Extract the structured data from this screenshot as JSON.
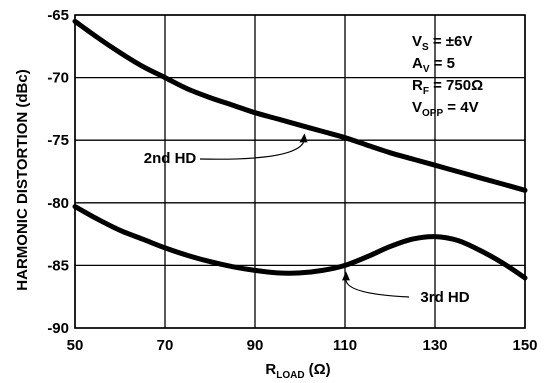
{
  "chart_data": {
    "type": "line",
    "title": "",
    "xlabel": {
      "main": "R",
      "sub": "LOAD",
      "unit": "(Ω)"
    },
    "ylabel": "HARMONIC DISTORTION (dBc)",
    "xlim": [
      50,
      150
    ],
    "ylim": [
      -90,
      -65
    ],
    "xticks": [
      "50",
      "70",
      "90",
      "110",
      "130",
      "150"
    ],
    "yticks": [
      "-65",
      "-70",
      "-75",
      "-80",
      "-85",
      "-90"
    ],
    "grid": true,
    "series": [
      {
        "name": "2nd HD",
        "x": [
          50,
          55,
          60,
          65,
          70,
          75,
          80,
          85,
          90,
          95,
          100,
          105,
          110,
          115,
          120,
          125,
          130,
          135,
          140,
          145,
          150
        ],
        "y": [
          -65.5,
          -66.8,
          -68.0,
          -69.1,
          -70.0,
          -70.9,
          -71.6,
          -72.2,
          -72.8,
          -73.3,
          -73.8,
          -74.3,
          -74.8,
          -75.4,
          -76.0,
          -76.5,
          -77.0,
          -77.5,
          -78.0,
          -78.5,
          -79.0
        ]
      },
      {
        "name": "3rd HD",
        "x": [
          50,
          55,
          60,
          65,
          70,
          75,
          80,
          85,
          90,
          95,
          100,
          105,
          110,
          115,
          120,
          125,
          130,
          135,
          140,
          145,
          150
        ],
        "y": [
          -80.3,
          -81.3,
          -82.2,
          -82.9,
          -83.6,
          -84.2,
          -84.7,
          -85.1,
          -85.4,
          -85.6,
          -85.6,
          -85.4,
          -85.0,
          -84.3,
          -83.5,
          -82.9,
          -82.7,
          -83.0,
          -83.8,
          -84.8,
          -86.0
        ]
      }
    ],
    "annotations": [
      {
        "text": "2nd HD",
        "x_at": 101,
        "y_at": -73.9
      },
      {
        "text": "3rd HD",
        "x_at": 110,
        "y_at": -85.0
      }
    ],
    "conditions": [
      {
        "main": "V",
        "sub": "S",
        "rest": " = ±6V"
      },
      {
        "main": "A",
        "sub": "V",
        "rest": " = 5"
      },
      {
        "main": "R",
        "sub": "F",
        "rest": " = 750Ω"
      },
      {
        "main": "V",
        "sub": "OPP",
        "rest": " = 4V"
      }
    ]
  }
}
